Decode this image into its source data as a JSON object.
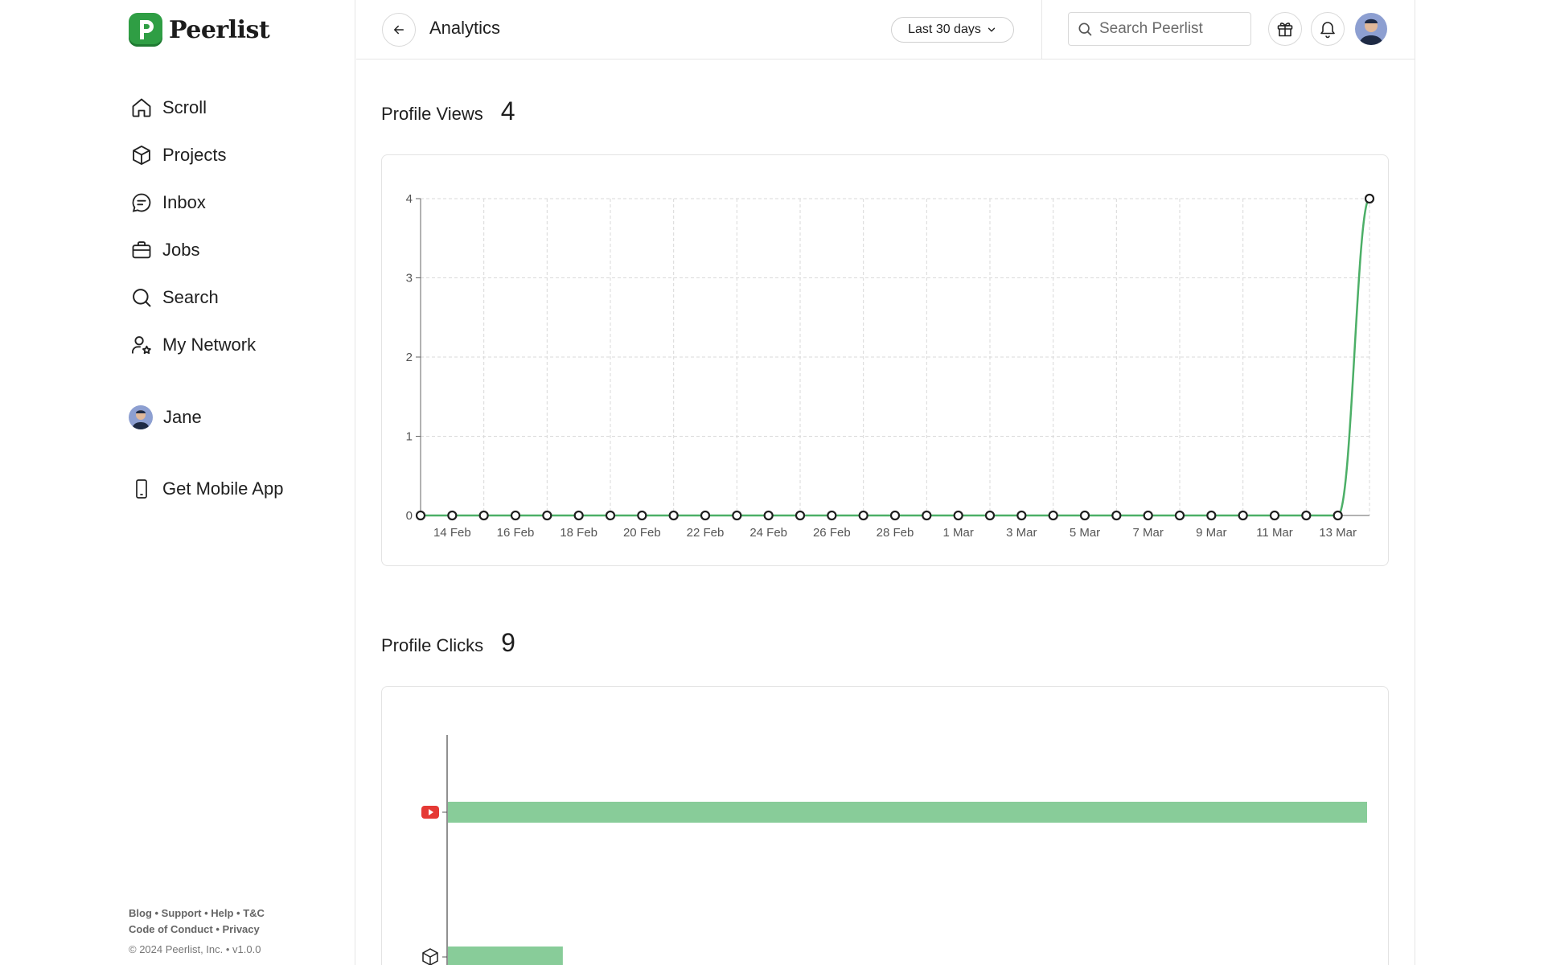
{
  "brand": {
    "name": "Peerlist",
    "accent": "#2f9e44"
  },
  "sidebar": {
    "items": [
      {
        "label": "Scroll",
        "icon": "home-icon"
      },
      {
        "label": "Projects",
        "icon": "cube-icon"
      },
      {
        "label": "Inbox",
        "icon": "chat-icon"
      },
      {
        "label": "Jobs",
        "icon": "briefcase-icon"
      },
      {
        "label": "Search",
        "icon": "search-icon"
      },
      {
        "label": "My Network",
        "icon": "network-icon"
      }
    ],
    "profile": {
      "label": "Jane"
    },
    "mobile": {
      "label": "Get Mobile App",
      "icon": "phone-icon"
    },
    "footer": {
      "links": "Blog • Support • Help • T&C",
      "links2": "Code of Conduct • Privacy",
      "copyright": "© 2024 Peerlist, Inc. • v1.0.0"
    }
  },
  "header": {
    "title": "Analytics",
    "range": "Last 30 days",
    "search_placeholder": "Search Peerlist"
  },
  "profile_views": {
    "title": "Profile Views",
    "count": "4"
  },
  "profile_clicks": {
    "title": "Profile Clicks",
    "count": "9"
  },
  "chart_data": [
    {
      "type": "line",
      "title": "Profile Views",
      "x": [
        "13 Feb",
        "14 Feb",
        "15 Feb",
        "16 Feb",
        "17 Feb",
        "18 Feb",
        "19 Feb",
        "20 Feb",
        "21 Feb",
        "22 Feb",
        "23 Feb",
        "24 Feb",
        "25 Feb",
        "26 Feb",
        "27 Feb",
        "28 Feb",
        "29 Feb",
        "1 Mar",
        "2 Mar",
        "3 Mar",
        "4 Mar",
        "5 Mar",
        "6 Mar",
        "7 Mar",
        "8 Mar",
        "9 Mar",
        "10 Mar",
        "11 Mar",
        "12 Mar",
        "13 Mar",
        "14 Mar"
      ],
      "x_tick_labels": [
        "14 Feb",
        "16 Feb",
        "18 Feb",
        "20 Feb",
        "22 Feb",
        "24 Feb",
        "26 Feb",
        "28 Feb",
        "1 Mar",
        "3 Mar",
        "5 Mar",
        "7 Mar",
        "9 Mar",
        "11 Mar",
        "13 Mar"
      ],
      "values": [
        0,
        0,
        0,
        0,
        0,
        0,
        0,
        0,
        0,
        0,
        0,
        0,
        0,
        0,
        0,
        0,
        0,
        0,
        0,
        0,
        0,
        0,
        0,
        0,
        0,
        0,
        0,
        0,
        0,
        0,
        4
      ],
      "yticks": [
        0,
        1,
        2,
        3,
        4
      ],
      "ylim": [
        0,
        4
      ],
      "grid": true,
      "line_color": "#4caf67"
    },
    {
      "type": "bar",
      "orientation": "horizontal",
      "title": "Profile Clicks",
      "categories": [
        "youtube-icon",
        "cube-icon"
      ],
      "values": [
        8,
        1
      ],
      "xlim": [
        0,
        8
      ],
      "bar_color": "#88cc99"
    }
  ]
}
